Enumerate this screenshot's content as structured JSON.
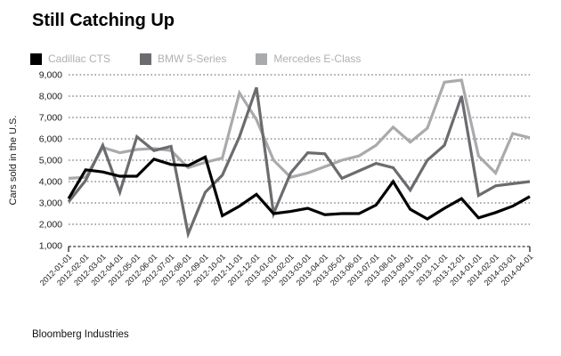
{
  "title": "Still Catching Up",
  "source": "Bloomberg Industries",
  "chart_data": {
    "type": "line",
    "title": "Still Catching Up",
    "ylabel": "Cars sold in the U.S.",
    "ylim": [
      1000,
      9000
    ],
    "ytick_interval": 1000,
    "ytick_labels": [
      "1,000",
      "2,000",
      "3,000",
      "4,000",
      "5,000",
      "6,000",
      "7,000",
      "8,000",
      "9,000"
    ],
    "grid": "horizontal-dotted",
    "legend_position": "top",
    "categories": [
      "2012-01-01",
      "2012-02-01",
      "2012-03-01",
      "2012-04-01",
      "2012-05-01",
      "2012-06-01",
      "2012-07-01",
      "2012-08-01",
      "2012-09-01",
      "2012-10-01",
      "2012-11-01",
      "2012-12-01",
      "2013-01-01",
      "2013-02-01",
      "2013-03-01",
      "2013-04-01",
      "2013-05-01",
      "2013-06-01",
      "2013-07-01",
      "2013-08-01",
      "2013-09-01",
      "2013-10-01",
      "2013-11-01",
      "2013-12-01",
      "2014-01-01",
      "2014-02-01",
      "2014-03-01",
      "2014-04-01"
    ],
    "series": [
      {
        "name": "Cadillac CTS",
        "color": "#000000",
        "values": [
          3200,
          4550,
          4450,
          4250,
          4250,
          5050,
          4800,
          4750,
          5150,
          2400,
          2850,
          3400,
          2500,
          2600,
          2750,
          2450,
          2500,
          2500,
          2900,
          4000,
          2700,
          2250,
          2750,
          3200,
          2300,
          2550,
          2850,
          3300
        ]
      },
      {
        "name": "BMW 5-Series",
        "color": "#6b6c6f",
        "values": [
          3050,
          4050,
          5700,
          3500,
          6100,
          5450,
          5650,
          1550,
          3500,
          4300,
          6100,
          8400,
          2500,
          4400,
          5350,
          5300,
          4150,
          4500,
          4850,
          4650,
          3600,
          5000,
          5700,
          8000,
          3350,
          3800,
          3900,
          4000
        ]
      },
      {
        "name": "Mercedes E-Class",
        "color": "#a8aaac",
        "values": [
          4150,
          4200,
          5600,
          5350,
          5500,
          5550,
          5450,
          4650,
          4900,
          5100,
          8150,
          6900,
          5000,
          4200,
          4400,
          4700,
          5000,
          5200,
          5700,
          6550,
          5850,
          6500,
          8650,
          8750,
          5200,
          4400,
          6250,
          6050
        ]
      }
    ]
  },
  "style": {
    "grid_color": "#8f8f8f",
    "axis_color": "#333333",
    "tick_label_color": "#1a1a1a",
    "legend_text_color": "#b0b0b0"
  }
}
